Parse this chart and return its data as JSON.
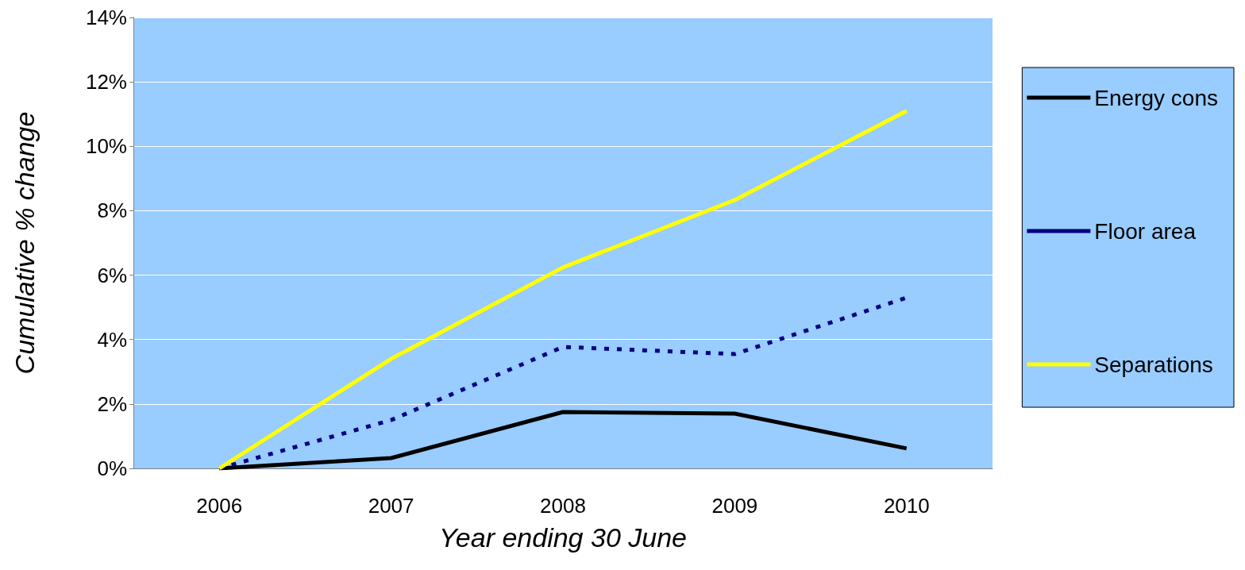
{
  "chart_data": {
    "type": "line",
    "xlabel": "Year ending 30 June",
    "ylabel": "Cumulative % change",
    "categories": [
      "2006",
      "2007",
      "2008",
      "2009",
      "2010"
    ],
    "series": [
      {
        "name": "Energy cons",
        "color": "#000000",
        "line_style": "solid",
        "values": [
          0,
          0.32,
          1.75,
          1.7,
          0.62
        ]
      },
      {
        "name": "Floor area",
        "color": "#000080",
        "line_style": "dashed",
        "values": [
          0,
          1.5,
          3.77,
          3.55,
          5.3
        ]
      },
      {
        "name": "Separations",
        "color": "#ffff00",
        "line_style": "solid",
        "values": [
          0,
          3.4,
          6.24,
          8.33,
          11.1
        ]
      }
    ],
    "ylim": [
      0,
      14
    ],
    "yticks": [
      {
        "value": 0,
        "label": "0%"
      },
      {
        "value": 2,
        "label": "2%"
      },
      {
        "value": 4,
        "label": "4%"
      },
      {
        "value": 6,
        "label": "6%"
      },
      {
        "value": 8,
        "label": "8%"
      },
      {
        "value": 10,
        "label": "10%"
      },
      {
        "value": 12,
        "label": "12%"
      },
      {
        "value": 14,
        "label": "14%"
      }
    ],
    "grid": "y",
    "legend": "right",
    "marker": "none"
  }
}
